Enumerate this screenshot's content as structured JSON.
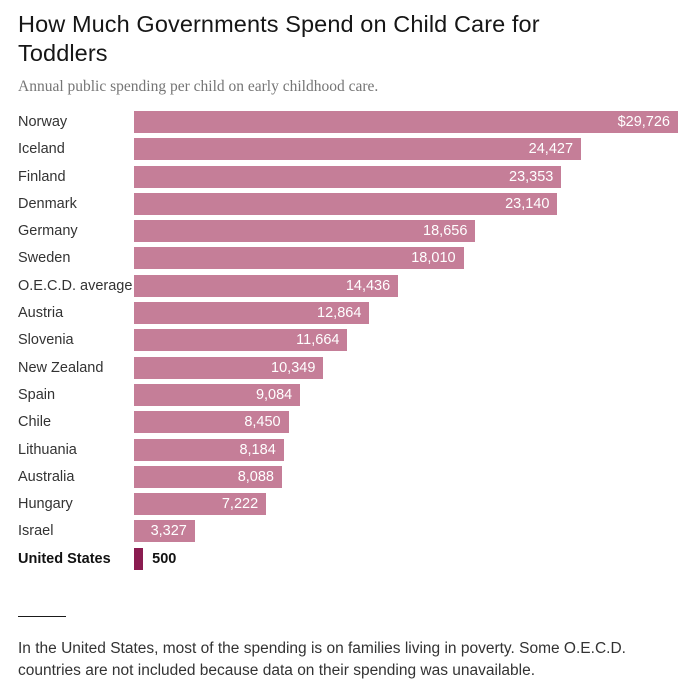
{
  "header": {
    "title": "How Much Governments Spend on Child Care for Toddlers",
    "subtitle": "Annual public spending per child on early childhood care."
  },
  "chart_data": {
    "type": "bar",
    "orientation": "horizontal",
    "title": "How Much Governments Spend on Child Care for Toddlers",
    "subtitle": "Annual public spending per child on early childhood care.",
    "value_unit": "annual public spending per child, USD",
    "xlim": [
      0,
      29726
    ],
    "max_value": 29726,
    "grid": false,
    "bar_color": "#c57e98",
    "highlight_color": "#8a1c50",
    "value_label_color_inside": "#ffffff",
    "rows": [
      {
        "label": "Norway",
        "value": 29726,
        "display": "$29,726",
        "highlight": false
      },
      {
        "label": "Iceland",
        "value": 24427,
        "display": "24,427",
        "highlight": false
      },
      {
        "label": "Finland",
        "value": 23353,
        "display": "23,353",
        "highlight": false
      },
      {
        "label": "Denmark",
        "value": 23140,
        "display": "23,140",
        "highlight": false
      },
      {
        "label": "Germany",
        "value": 18656,
        "display": "18,656",
        "highlight": false
      },
      {
        "label": "Sweden",
        "value": 18010,
        "display": "18,010",
        "highlight": false
      },
      {
        "label": "O.E.C.D. average",
        "value": 14436,
        "display": "14,436",
        "highlight": false
      },
      {
        "label": "Austria",
        "value": 12864,
        "display": "12,864",
        "highlight": false
      },
      {
        "label": "Slovenia",
        "value": 11664,
        "display": "11,664",
        "highlight": false
      },
      {
        "label": "New Zealand",
        "value": 10349,
        "display": "10,349",
        "highlight": false
      },
      {
        "label": "Spain",
        "value": 9084,
        "display": "9,084",
        "highlight": false
      },
      {
        "label": "Chile",
        "value": 8450,
        "display": "8,450",
        "highlight": false
      },
      {
        "label": "Lithuania",
        "value": 8184,
        "display": "8,184",
        "highlight": false
      },
      {
        "label": "Australia",
        "value": 8088,
        "display": "8,088",
        "highlight": false
      },
      {
        "label": "Hungary",
        "value": 7222,
        "display": "7,222",
        "highlight": false
      },
      {
        "label": "Israel",
        "value": 3327,
        "display": "3,327",
        "highlight": false
      },
      {
        "label": "United States",
        "value": 500,
        "display": "500",
        "highlight": true
      }
    ]
  },
  "footnote": {
    "text": "In the United States, most of the spending is on families living in poverty. Some O.E.C.D. countries are not included because data on their spending was unavailable."
  }
}
